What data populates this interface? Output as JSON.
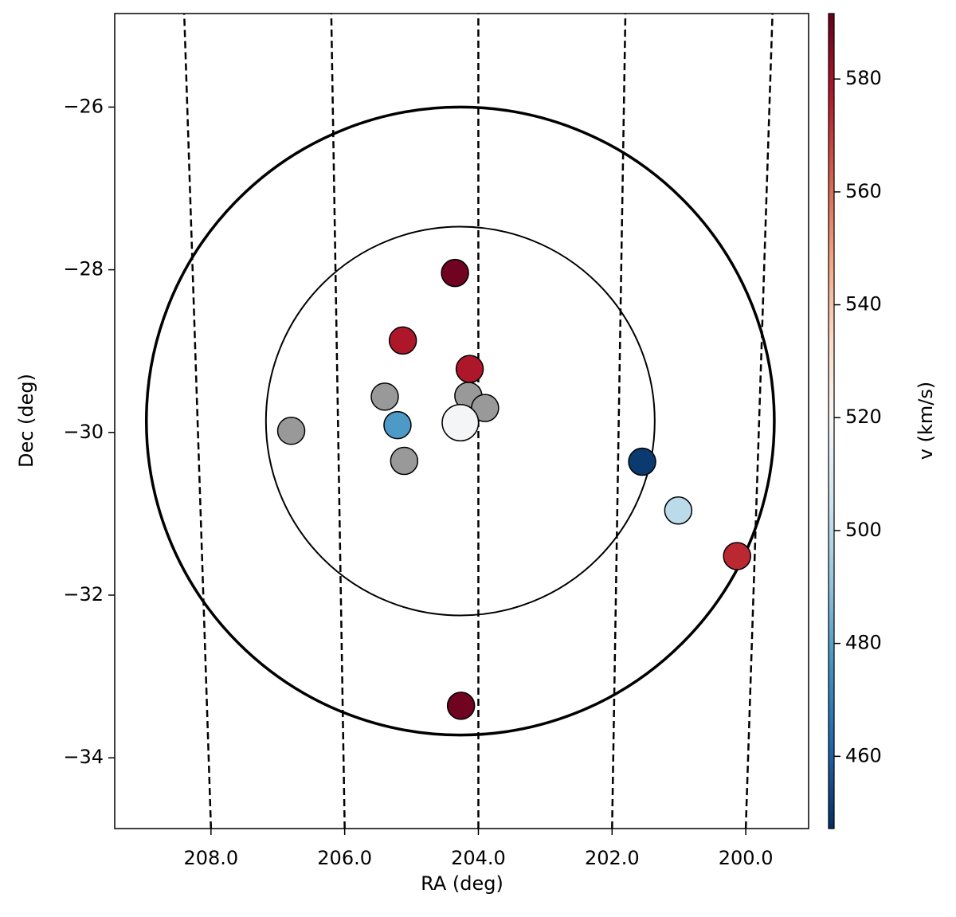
{
  "chart_data": {
    "type": "scatter",
    "xlabel": "RA (deg)",
    "ylabel": "Dec (deg)",
    "xlim": [
      209.44,
      199.06
    ],
    "ylim": [
      -34.87,
      -24.85
    ],
    "xticks": [
      {
        "value": 208,
        "label": "208.0"
      },
      {
        "value": 206,
        "label": "206.0"
      },
      {
        "value": 204,
        "label": "204.0"
      },
      {
        "value": 202,
        "label": "202.0"
      },
      {
        "value": 200,
        "label": "200.0"
      }
    ],
    "yticks": [
      {
        "value": -34,
        "label": "−34"
      },
      {
        "value": -32,
        "label": "−32"
      },
      {
        "value": -30,
        "label": "−30"
      },
      {
        "value": -28,
        "label": "−28"
      },
      {
        "value": -26,
        "label": "−26"
      }
    ],
    "circles": [
      {
        "ra": 204.27,
        "dec": -29.86,
        "radius": 3.86
      },
      {
        "ra": 204.27,
        "dec": -29.86,
        "radius": 2.39
      }
    ],
    "series": [
      {
        "x": [
          204.35,
          205.13,
          204.13,
          205.21,
          204.27,
          201.55,
          201.01,
          200.13,
          204.26
        ],
        "y": [
          -28.04,
          -28.87,
          -29.22,
          -29.91,
          -29.88,
          -30.36,
          -30.96,
          -31.52,
          -33.36
        ],
        "v": [
          590,
          578,
          578,
          478,
          518,
          450,
          500,
          574,
          590
        ],
        "sizes": [
          1,
          1,
          1,
          1,
          1.8,
          1,
          1,
          1,
          1
        ]
      },
      {
        "color": "#999999",
        "x": [
          205.4,
          204.15,
          203.9,
          206.8,
          205.11
        ],
        "y": [
          -29.56,
          -29.55,
          -29.7,
          -29.98,
          -30.35
        ],
        "sizes": [
          1,
          1,
          1,
          1,
          1
        ]
      }
    ],
    "colorbar": {
      "label": "v (km/s)",
      "lim": [
        447.2,
        591.6
      ],
      "ticks": [
        460,
        480,
        500,
        520,
        540,
        560,
        580
      ],
      "colormap": [
        "#053061",
        "#2166ac",
        "#4393c3",
        "#92c5de",
        "#d1e5f0",
        "#f7f7f7",
        "#fddbc7",
        "#f4a582",
        "#d6604d",
        "#b2182b",
        "#67001f"
      ]
    }
  }
}
